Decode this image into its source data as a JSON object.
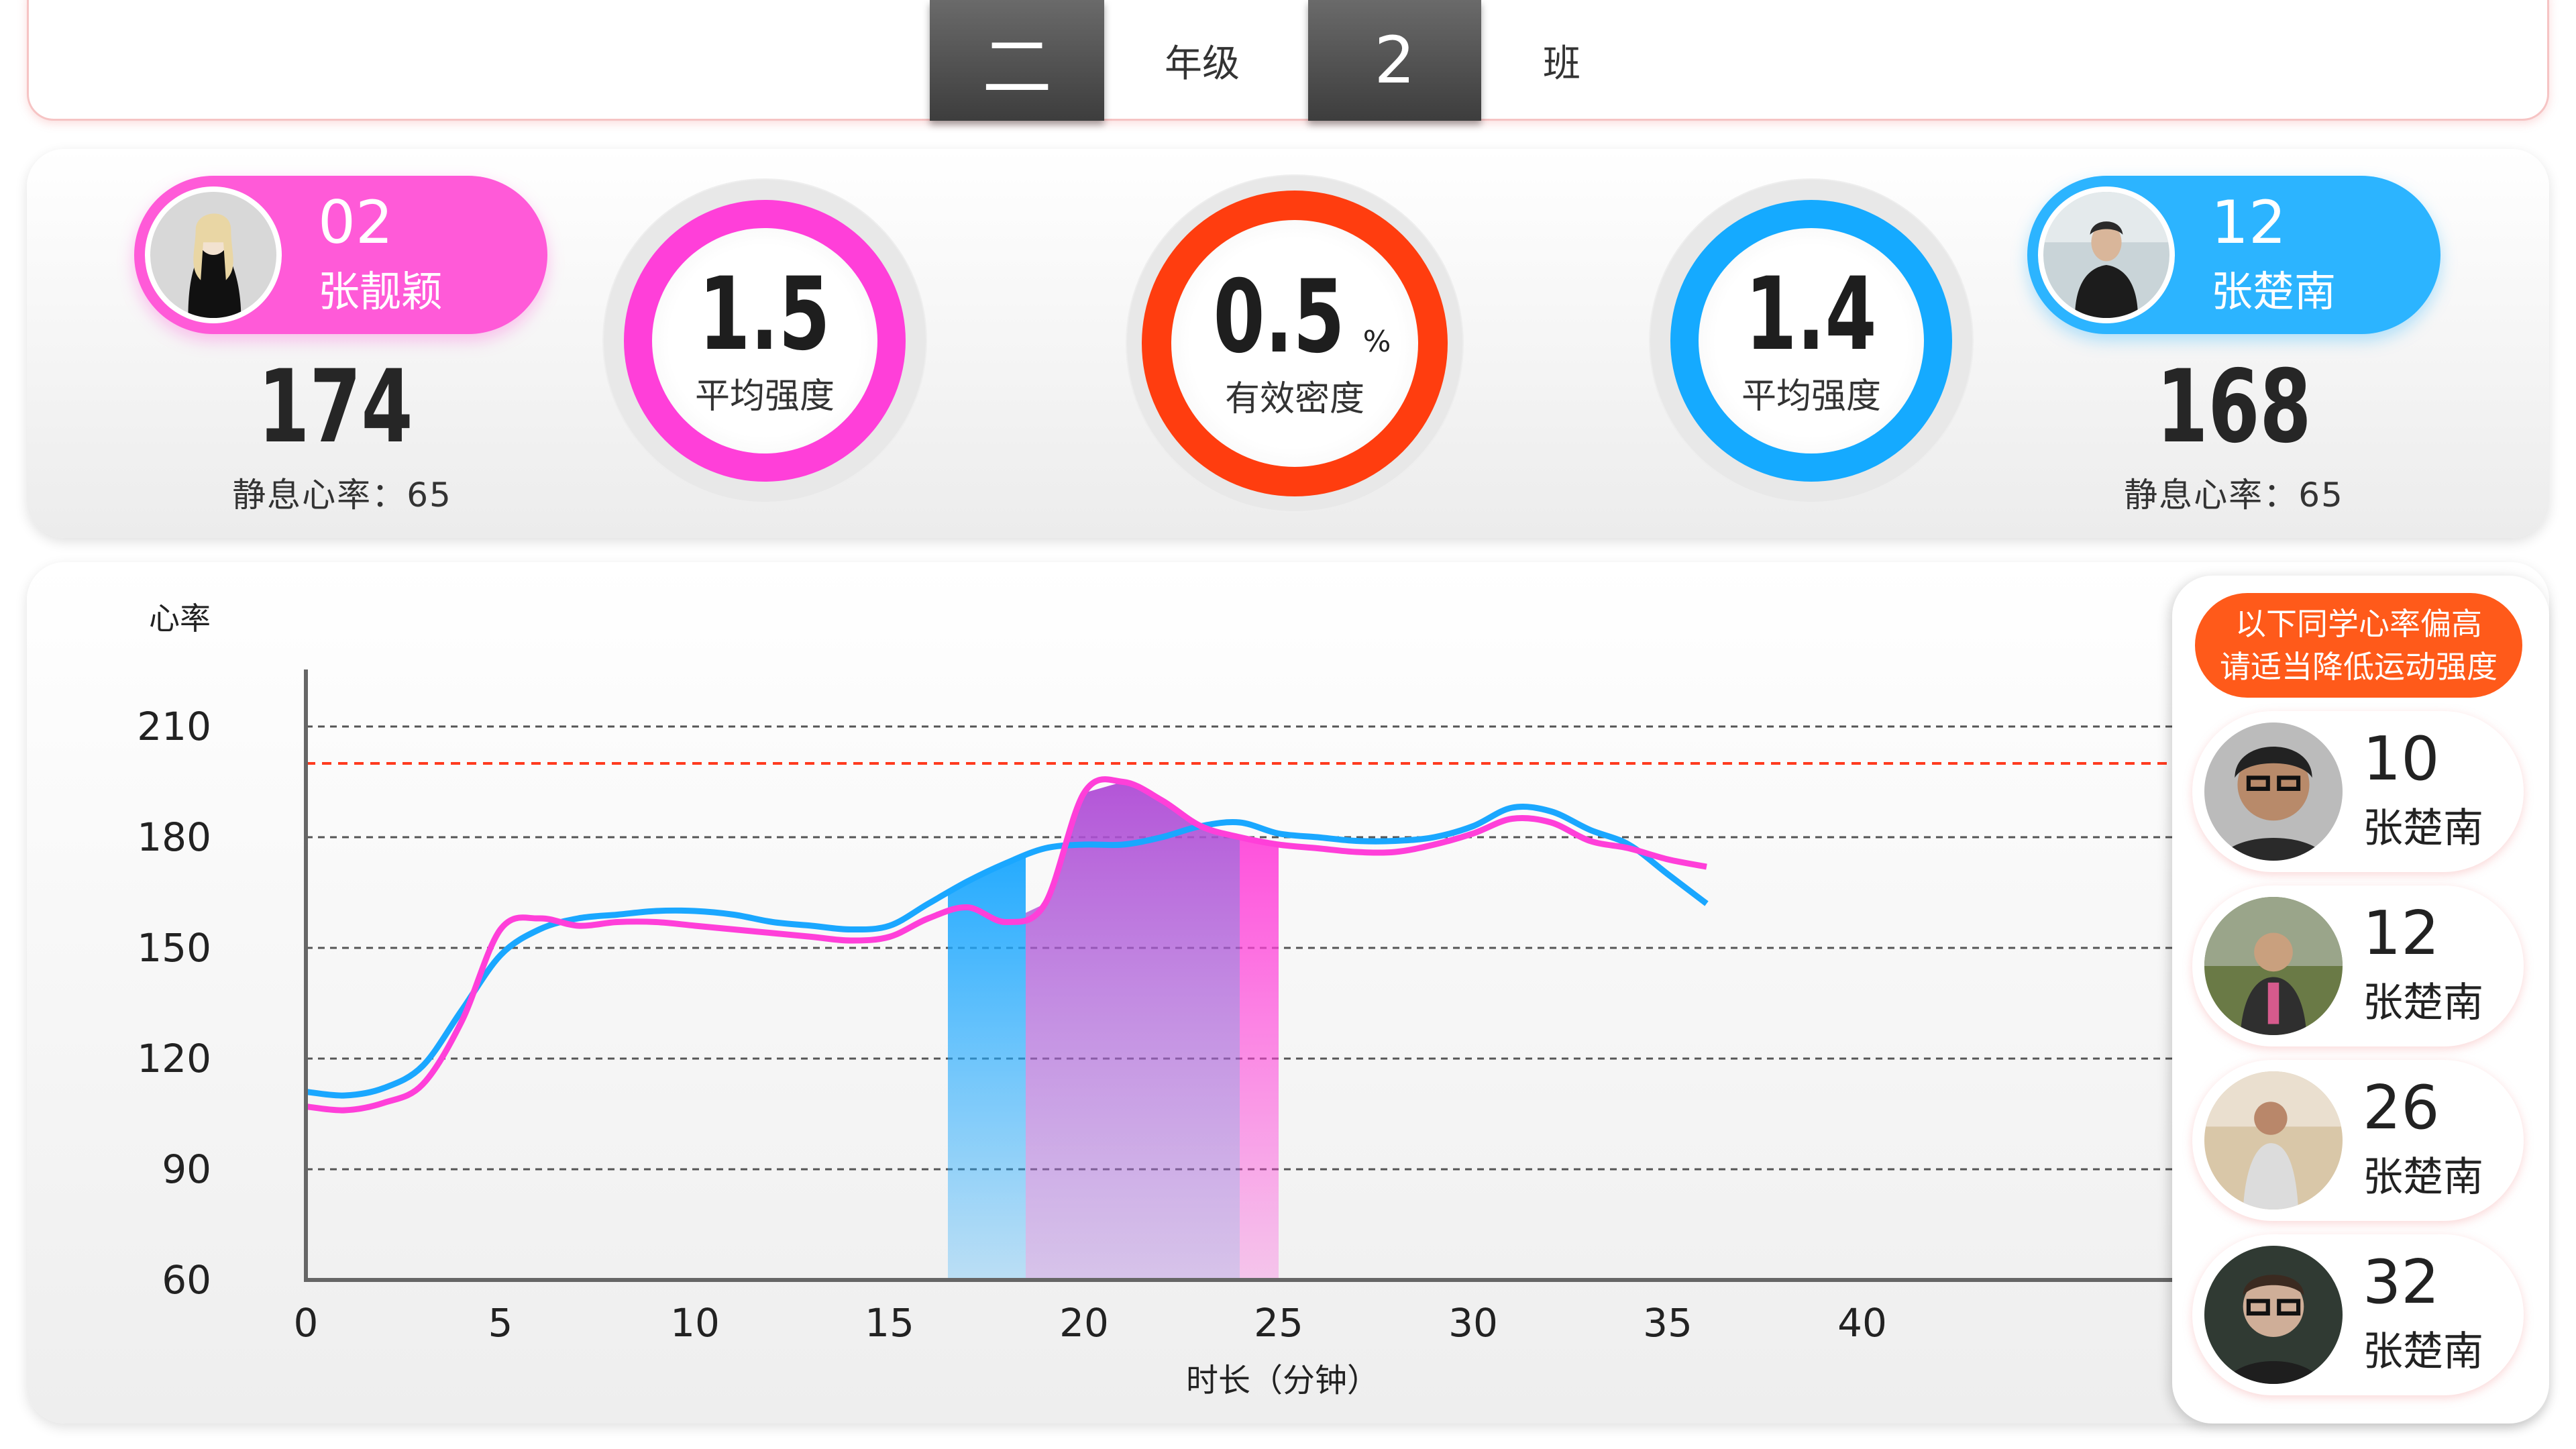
{
  "class_selector": {
    "grade_value": "二",
    "grade_label": "年级",
    "class_value": "2",
    "class_label": "班"
  },
  "left_student": {
    "number": "02",
    "name": "张靓颖",
    "heart_rate": "174",
    "resting_label": "静息心率：",
    "resting_value": "65",
    "color": "#ff5ad8"
  },
  "right_student": {
    "number": "12",
    "name": "张楚南",
    "heart_rate": "168",
    "resting_label": "静息心率：",
    "resting_value": "65",
    "color": "#2cb4ff"
  },
  "metrics": {
    "left_intensity": {
      "value": "1.5",
      "label": "平均强度",
      "color": "#ff3fd9"
    },
    "density": {
      "value": "0.5",
      "unit": "%",
      "label": "有效密度",
      "color": "#ff3d0f"
    },
    "right_intensity": {
      "value": "1.4",
      "label": "平均强度",
      "color": "#15aaff"
    }
  },
  "alert": {
    "line1": "以下同学心率偏高",
    "line2": "请适当降低运动强度",
    "students": [
      {
        "number": "10",
        "name": "张楚南"
      },
      {
        "number": "12",
        "name": "张楚南"
      },
      {
        "number": "26",
        "name": "张楚南"
      },
      {
        "number": "32",
        "name": "张楚南"
      }
    ]
  },
  "chart_data": {
    "type": "line",
    "ylabel": "心率",
    "xlabel": "时长（分钟）",
    "xlim": [
      0,
      48
    ],
    "ylim": [
      60,
      220
    ],
    "x_ticks": [
      0,
      5,
      10,
      15,
      20,
      25,
      30,
      35,
      40
    ],
    "y_ticks": [
      60,
      90,
      120,
      150,
      180,
      210
    ],
    "threshold": 200,
    "threshold_color": "#ff3b1f",
    "series": [
      {
        "color": "#1aa7ff",
        "points": [
          [
            0,
            111
          ],
          [
            1,
            110
          ],
          [
            2,
            112
          ],
          [
            3,
            118
          ],
          [
            4,
            133
          ],
          [
            5,
            148
          ],
          [
            6,
            155
          ],
          [
            7,
            158
          ],
          [
            8,
            159
          ],
          [
            9,
            160
          ],
          [
            10,
            160
          ],
          [
            11,
            159
          ],
          [
            12,
            157
          ],
          [
            13,
            156
          ],
          [
            14,
            155
          ],
          [
            15,
            156
          ],
          [
            16,
            162
          ],
          [
            17,
            168
          ],
          [
            18,
            173
          ],
          [
            19,
            177
          ],
          [
            20,
            178
          ],
          [
            21,
            178
          ],
          [
            22,
            180
          ],
          [
            23,
            183
          ],
          [
            24,
            184
          ],
          [
            25,
            181
          ],
          [
            26,
            180
          ],
          [
            27,
            179
          ],
          [
            28,
            179
          ],
          [
            29,
            180
          ],
          [
            30,
            183
          ],
          [
            31,
            188
          ],
          [
            32,
            187
          ],
          [
            33,
            182
          ],
          [
            34,
            178
          ],
          [
            35,
            170
          ],
          [
            36,
            162
          ]
        ]
      },
      {
        "color": "#ff3fd9",
        "points": [
          [
            0,
            107
          ],
          [
            1,
            106
          ],
          [
            2,
            108
          ],
          [
            3,
            113
          ],
          [
            4,
            130
          ],
          [
            5,
            155
          ],
          [
            6,
            158
          ],
          [
            7,
            156
          ],
          [
            8,
            157
          ],
          [
            9,
            157
          ],
          [
            10,
            156
          ],
          [
            11,
            155
          ],
          [
            12,
            154
          ],
          [
            13,
            153
          ],
          [
            14,
            152
          ],
          [
            15,
            153
          ],
          [
            16,
            158
          ],
          [
            17,
            161
          ],
          [
            18,
            157
          ],
          [
            19,
            162
          ],
          [
            20,
            192
          ],
          [
            21,
            195
          ],
          [
            22,
            190
          ],
          [
            23,
            183
          ],
          [
            24,
            180
          ],
          [
            25,
            178
          ],
          [
            26,
            177
          ],
          [
            27,
            176
          ],
          [
            28,
            176
          ],
          [
            29,
            178
          ],
          [
            30,
            181
          ],
          [
            31,
            185
          ],
          [
            32,
            184
          ],
          [
            33,
            179
          ],
          [
            34,
            177
          ],
          [
            35,
            174
          ],
          [
            36,
            172
          ]
        ]
      }
    ],
    "highlight_ranges": [
      {
        "color": "#1aa7ff",
        "from": 16.5,
        "to": 18.5
      },
      {
        "color": "#a05fd9",
        "from": 18.5,
        "to": 24
      },
      {
        "color": "#ff3fd9",
        "from": 24,
        "to": 25
      }
    ]
  }
}
